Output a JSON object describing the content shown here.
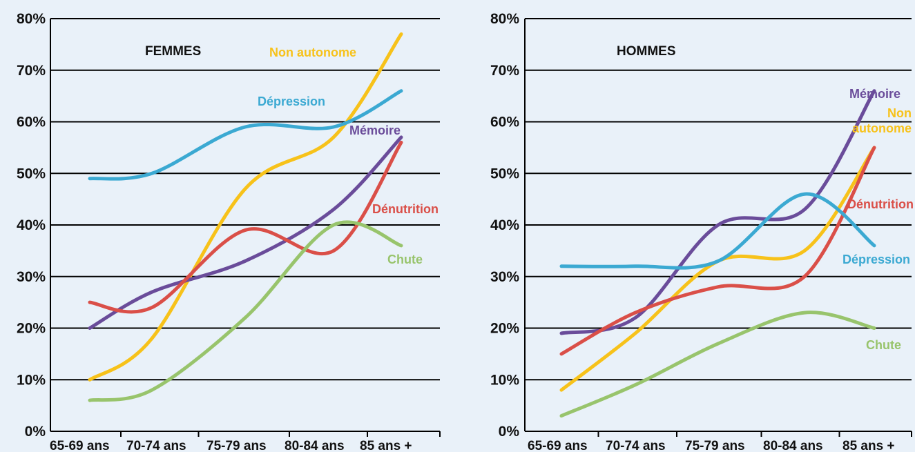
{
  "chart_data": [
    {
      "type": "line",
      "title": "FEMMES",
      "categories": [
        "65-69 ans",
        "70-74 ans",
        "75-79 ans",
        "80-84 ans",
        "85 ans +"
      ],
      "ylim": [
        0,
        80
      ],
      "yticks": [
        "0%",
        "10%",
        "20%",
        "30%",
        "40%",
        "50%",
        "60%",
        "70%",
        "80%"
      ],
      "grid": true,
      "series": [
        {
          "name": "Non autonome",
          "color": "#f7c21a",
          "values": [
            10,
            18,
            47,
            57,
            77
          ]
        },
        {
          "name": "Dépression",
          "color": "#3ba9d2",
          "values": [
            49,
            50,
            59,
            59,
            66
          ]
        },
        {
          "name": "Mémoire",
          "color": "#6a4c9a",
          "values": [
            20,
            27,
            33,
            43,
            57
          ]
        },
        {
          "name": "Dénutrition",
          "color": "#da4f48",
          "values": [
            25,
            24,
            39,
            35,
            56
          ]
        },
        {
          "name": "Chute",
          "color": "#98c46c",
          "values": [
            6,
            8,
            22,
            40,
            36
          ]
        }
      ]
    },
    {
      "type": "line",
      "title": "HOMMES",
      "categories": [
        "65-69 ans",
        "70-74 ans",
        "75-79 ans",
        "80-84 ans",
        "85 ans +"
      ],
      "ylim": [
        0,
        80
      ],
      "yticks": [
        "0%",
        "10%",
        "20%",
        "30%",
        "40%",
        "50%",
        "60%",
        "70%",
        "80%"
      ],
      "grid": true,
      "series": [
        {
          "name": "Mémoire",
          "color": "#6a4c9a",
          "values": [
            19,
            22,
            40,
            43,
            66
          ]
        },
        {
          "name": "Non autonome",
          "color": "#f7c21a",
          "values": [
            8,
            19,
            33,
            35,
            55
          ]
        },
        {
          "name": "Dénutrition",
          "color": "#da4f48",
          "values": [
            15,
            23,
            28,
            30,
            55
          ]
        },
        {
          "name": "Dépression",
          "color": "#3ba9d2",
          "values": [
            32,
            32,
            33,
            46,
            36
          ]
        },
        {
          "name": "Chute",
          "color": "#98c46c",
          "values": [
            3,
            9,
            17,
            23,
            20
          ]
        }
      ]
    }
  ]
}
